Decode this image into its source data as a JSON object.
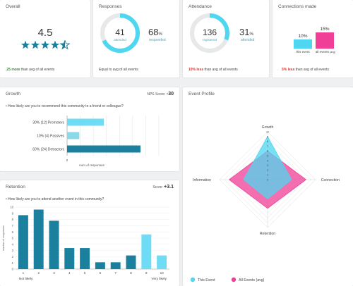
{
  "overall": {
    "title": "Overall",
    "score": "4.5",
    "rating": 4.5,
    "delta": ".25 more",
    "delta_suffix": " than avg of all events"
  },
  "responses": {
    "title": "Responses",
    "attended_value": "41",
    "attended_label": "attended",
    "responded_value": "68",
    "responded_unit": "%",
    "responded_label": "responded",
    "responded_fraction": 0.68,
    "footer": "Equal to avg of all events"
  },
  "attendance": {
    "title": "Attendance",
    "registered_value": "136",
    "registered_label": "registered",
    "attended_value": "31",
    "attended_unit": "%",
    "attended_label": "attended",
    "attended_fraction": 0.31,
    "delta": "10% less",
    "delta_suffix": " than avg of all events"
  },
  "connections": {
    "title": "Connections made",
    "this_value": "10%",
    "this_label": "this event",
    "all_value": "15%",
    "all_label": "all events",
    "all_label_sub": "(avg)",
    "delta": "5% less",
    "delta_suffix": " than avg of all events",
    "colors": {
      "this": "#4fd6f0",
      "all": "#ef3f96"
    }
  },
  "growth": {
    "title": "Growth",
    "nps_label": "NPS Score:",
    "nps_value": "-30",
    "question": "How likely are you to recommend this community to a friend or colleague?",
    "xlabel": "num of responses",
    "x_tick": "0",
    "chart_data": {
      "type": "bar",
      "orientation": "horizontal",
      "categories": [
        "30% (12) Promoters",
        "10% (4) Passives",
        "60% (24) Detractors"
      ],
      "values": [
        12,
        4,
        24
      ],
      "xlim": [
        0,
        30
      ],
      "colors": [
        "#6fdcf5",
        "#8ad8e8",
        "#1b7f9e"
      ]
    }
  },
  "retention": {
    "title": "Retention",
    "score_label": "Score:",
    "score_value": "+3.1",
    "question": "How likely are you to attend another event in this community?",
    "ylabel": "number of responses",
    "left_label": "Not likely",
    "right_label": "Very likely",
    "chart_data": {
      "type": "bar",
      "categories": [
        "1",
        "2",
        "3",
        "4",
        "5",
        "6",
        "7",
        "8",
        "9",
        "10"
      ],
      "values": [
        8.7,
        9.6,
        7.8,
        3.4,
        3.4,
        1.1,
        1.1,
        2.2,
        5.6,
        2.2
      ],
      "ylim": [
        0,
        10
      ],
      "yticks": [
        "0",
        "1",
        "2",
        "3",
        "4",
        "5",
        "6",
        "7",
        "8",
        "9",
        "10"
      ],
      "colors": [
        "#1b7f9e",
        "#1b7f9e",
        "#1b7f9e",
        "#1b7f9e",
        "#1b7f9e",
        "#1b7f9e",
        "#1b7f9e",
        "#1b7f9e",
        "#6fdcf5",
        "#6fdcf5"
      ]
    }
  },
  "profile": {
    "title": "Event Profile",
    "chart_data": {
      "type": "radar",
      "axes": [
        "Growth",
        "Connection",
        "Retention",
        "Information"
      ],
      "range": [
        0,
        10
      ],
      "ticks": [
        "0",
        "1",
        "2",
        "3",
        "4",
        "5",
        "6",
        "7",
        "8",
        "9",
        "10"
      ],
      "series": [
        {
          "name": "This Event",
          "values": [
            9,
            5,
            4,
            5
          ],
          "color": "#4fd6f0"
        },
        {
          "name": "All  Events (avg)",
          "values": [
            6,
            8,
            6,
            8
          ],
          "color": "#ef3f96"
        }
      ]
    }
  }
}
